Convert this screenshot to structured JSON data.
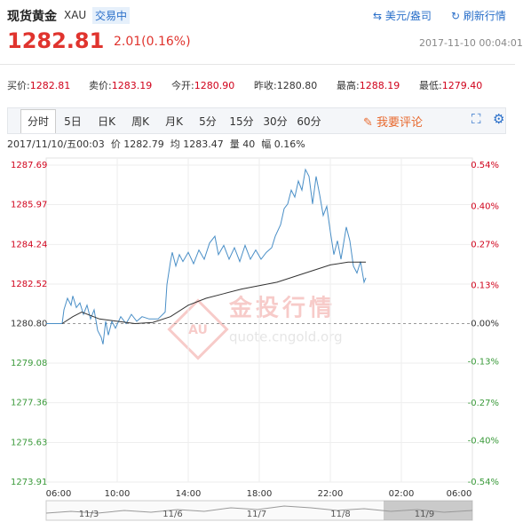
{
  "header": {
    "title": "现货黄金",
    "code": "XAU",
    "status": "交易中",
    "unit": "美元/盎司",
    "refresh": "刷新行情",
    "price": "1282.81",
    "change": "2.01(0.16%)",
    "timestamp": "2017-11-10 00:04:01"
  },
  "stats": [
    {
      "label": "买价:",
      "value": "1282.81"
    },
    {
      "label": "卖价:",
      "value": "1283.19"
    },
    {
      "label": "今开:",
      "value": "1280.90"
    },
    {
      "label": "昨收:",
      "value": "1280.80"
    },
    {
      "label": "最高:",
      "value": "1288.19"
    },
    {
      "label": "最低:",
      "value": "1279.40"
    }
  ],
  "tabs": [
    "分时",
    "5日",
    "日K",
    "周K",
    "月K",
    "5分",
    "15分",
    "30分",
    "60分"
  ],
  "comment": "我要评论",
  "info": [
    "2017/11/10/五00:03",
    "价 1282.79",
    "均 1283.47",
    "量 40",
    "幅 0.16%"
  ],
  "watermark": {
    "title": "金投行情",
    "url": "quote.cngold.org",
    "badge": "AU"
  },
  "navigator": {
    "labels": [
      "11/3",
      "11/6",
      "11/7",
      "11/8",
      "11/9"
    ]
  },
  "chart_data": {
    "type": "line",
    "grid": true,
    "up_color": "#d0021b",
    "down_color": "#3a9a3a",
    "xlim": [
      0,
      24
    ],
    "xticks": [
      {
        "value": 0,
        "label": "06:00"
      },
      {
        "value": 4,
        "label": "10:00"
      },
      {
        "value": 8,
        "label": "14:00"
      },
      {
        "value": 12,
        "label": "18:00"
      },
      {
        "value": 16,
        "label": "22:00"
      },
      {
        "value": 20,
        "label": "02:00"
      },
      {
        "value": 24,
        "label": "06:00"
      }
    ],
    "ylim": [
      1273.91,
      1287.69
    ],
    "yticks": [
      1287.69,
      1285.97,
      1284.24,
      1282.52,
      {
        "value": 1280.8,
        "label": "1280.80"
      },
      1279.08,
      1277.36,
      1275.63,
      1273.91
    ],
    "y2lim": [
      -0.54,
      0.54
    ],
    "y2ticks": [
      {
        "value": 0.54,
        "label": "0.54%"
      },
      {
        "value": 0.4,
        "label": "0.40%"
      },
      {
        "value": 0.27,
        "label": "0.27%"
      },
      {
        "value": 0.13,
        "label": "0.13%"
      },
      {
        "value": 0,
        "label": "0.00%"
      },
      {
        "value": -0.13,
        "label": "-0.13%"
      },
      {
        "value": -0.27,
        "label": "-0.27%"
      },
      {
        "value": -0.4,
        "label": "-0.40%"
      },
      {
        "value": -0.54,
        "label": "-0.54%"
      }
    ],
    "series": [
      {
        "color": "#4a8fc7",
        "x": [
          0,
          0.9,
          1.0,
          1.2,
          1.4,
          1.5,
          1.7,
          1.9,
          2.1,
          2.3,
          2.5,
          2.7,
          2.9,
          3.1,
          3.2,
          3.35,
          3.5,
          3.7,
          3.9,
          4.2,
          4.5,
          4.8,
          5.1,
          5.4,
          5.8,
          6.3,
          6.7,
          6.8,
          7.0,
          7.1,
          7.3,
          7.5,
          7.7,
          8.0,
          8.3,
          8.6,
          8.9,
          9.2,
          9.5,
          9.7,
          10.0,
          10.3,
          10.6,
          10.9,
          11.2,
          11.5,
          11.8,
          12.1,
          12.4,
          12.7,
          12.9,
          13.2,
          13.4,
          13.6,
          13.8,
          14.0,
          14.2,
          14.4,
          14.6,
          14.8,
          15.0,
          15.2,
          15.4,
          15.6,
          15.8,
          16.0,
          16.2,
          16.4,
          16.6,
          16.9,
          17.1,
          17.3,
          17.5,
          17.7,
          17.9,
          18.0
        ],
        "values": [
          1280.8,
          1280.8,
          1281.4,
          1281.9,
          1281.6,
          1282.0,
          1281.5,
          1281.7,
          1281.2,
          1281.6,
          1281.0,
          1281.4,
          1280.5,
          1280.2,
          1279.9,
          1280.9,
          1280.3,
          1280.9,
          1280.6,
          1281.1,
          1280.8,
          1281.2,
          1280.9,
          1281.1,
          1281.0,
          1281.0,
          1281.3,
          1282.5,
          1283.5,
          1283.9,
          1283.3,
          1283.8,
          1283.5,
          1283.9,
          1283.4,
          1284.0,
          1283.6,
          1284.3,
          1284.6,
          1283.8,
          1284.2,
          1283.6,
          1284.1,
          1283.5,
          1284.2,
          1283.6,
          1284.0,
          1283.6,
          1283.9,
          1284.1,
          1284.6,
          1285.1,
          1285.8,
          1286.0,
          1286.6,
          1286.3,
          1287.0,
          1286.6,
          1287.5,
          1287.2,
          1286.0,
          1287.2,
          1286.4,
          1285.5,
          1285.9,
          1284.8,
          1283.8,
          1284.4,
          1283.6,
          1285.0,
          1284.4,
          1283.3,
          1283.0,
          1283.5,
          1282.6,
          1282.79
        ]
      },
      {
        "color": "#333333",
        "x": [
          0.9,
          1.5,
          2.0,
          3.0,
          4.0,
          5.0,
          6.0,
          7.0,
          8.0,
          9.0,
          10.0,
          11.0,
          12.0,
          13.0,
          14.0,
          15.0,
          16.0,
          17.0,
          18.0
        ],
        "values": [
          1280.8,
          1281.1,
          1281.3,
          1281.0,
          1280.9,
          1280.8,
          1280.85,
          1281.1,
          1281.6,
          1281.9,
          1282.1,
          1282.3,
          1282.45,
          1282.6,
          1282.85,
          1283.1,
          1283.35,
          1283.47,
          1283.47
        ]
      }
    ]
  }
}
